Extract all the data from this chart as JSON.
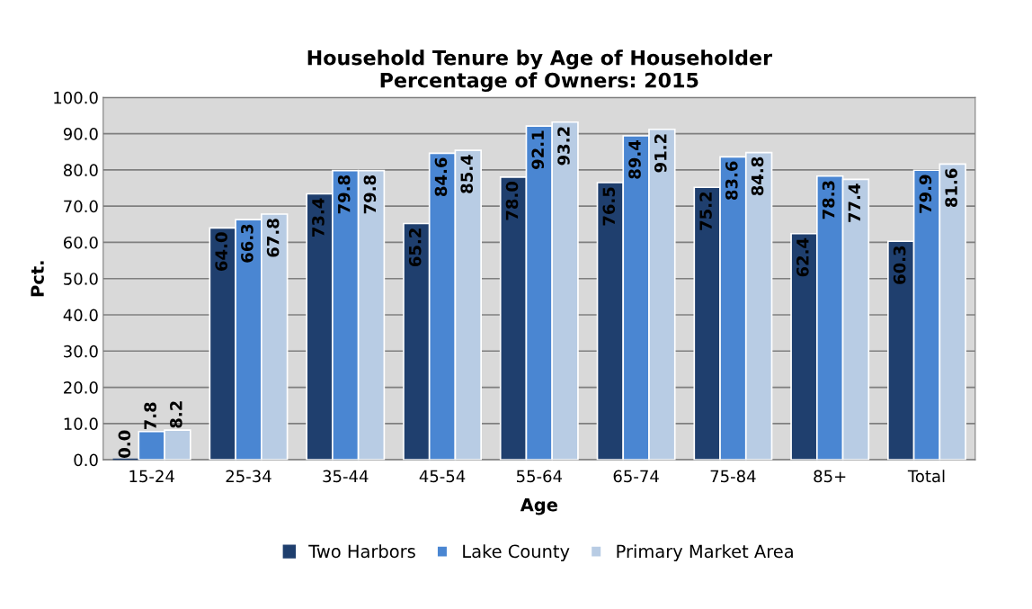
{
  "chart_data": {
    "type": "bar",
    "title": "Household Tenure by Age of Householder\nPercentage of Owners: 2015",
    "xlabel": "Age",
    "ylabel": "Pct.",
    "categories": [
      "15-24",
      "25-34",
      "35-44",
      "45-54",
      "55-64",
      "65-74",
      "75-84",
      "85+",
      "Total"
    ],
    "series": [
      {
        "name": "Two Harbors",
        "color": "#1f3f6e",
        "values": [
          0.0,
          64.0,
          73.4,
          65.2,
          78.0,
          76.5,
          75.2,
          62.4,
          60.3
        ],
        "value_labels": [
          "0.0",
          "64.0",
          "73.4",
          "65.2",
          "78.0",
          "76.5",
          "75.2",
          "62.4",
          "60.3"
        ]
      },
      {
        "name": "Lake County",
        "color": "#4a86d2",
        "values": [
          7.8,
          66.3,
          79.8,
          84.6,
          92.1,
          89.4,
          83.6,
          78.3,
          79.9
        ],
        "value_labels": [
          "7.8",
          "66.3",
          "79.8",
          "84.6",
          "92.1",
          "89.4",
          "83.6",
          "78.3",
          "79.9"
        ]
      },
      {
        "name": "Primary Market Area",
        "color": "#b8cce4",
        "values": [
          8.2,
          67.8,
          79.8,
          85.4,
          93.2,
          91.2,
          84.8,
          77.4,
          81.6
        ],
        "value_labels": [
          "8.2",
          "67.8",
          "79.8",
          "85.4",
          "93.2",
          "91.2",
          "84.8",
          "77.4",
          "81.6"
        ]
      }
    ],
    "ylim": [
      0,
      100
    ],
    "yticks": [
      {
        "value": 0,
        "label": "0.0"
      },
      {
        "value": 10,
        "label": "10.0"
      },
      {
        "value": 20,
        "label": "20.0"
      },
      {
        "value": 30,
        "label": "30.0"
      },
      {
        "value": 40,
        "label": "40.0"
      },
      {
        "value": 50,
        "label": "50.0"
      },
      {
        "value": 60,
        "label": "60.0"
      },
      {
        "value": 70,
        "label": "70.0"
      },
      {
        "value": 80,
        "label": "80.0"
      },
      {
        "value": 90,
        "label": "90.0"
      },
      {
        "value": 100,
        "label": "100.0"
      }
    ],
    "grid": "y",
    "legend": "bottom"
  }
}
